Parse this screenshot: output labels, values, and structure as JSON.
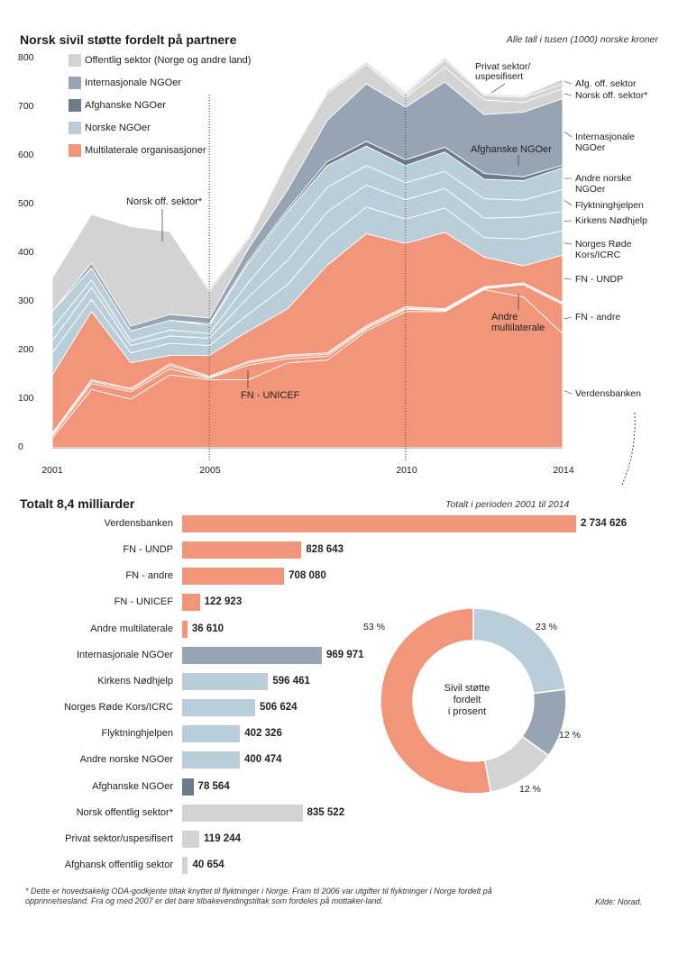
{
  "header": {
    "title": "Norsk sivil støtte fordelt på partnere",
    "unit_note": "Alle tall i tusen (1000) norske kroner"
  },
  "colors": {
    "public": "#d3d3d3",
    "intl": "#96a4b3",
    "afgh": "#6e7b88",
    "norsk": "#b9ced9",
    "multi": "#f1967a",
    "line": "#ffffff"
  },
  "legend": [
    {
      "label": "Offentlig sektor (Norge og andre land)",
      "color": "#d3d3d3"
    },
    {
      "label": "Internasjonale NGOer",
      "color": "#96a4b3"
    },
    {
      "label": "Afghanske NGOer",
      "color": "#6e7b88"
    },
    {
      "label": "Norske NGOer",
      "color": "#b9ced9"
    },
    {
      "label": "Multilaterale organisasjoner",
      "color": "#f1967a"
    }
  ],
  "chart_data": [
    {
      "type": "area",
      "title": "Norsk sivil støtte fordelt på partnere",
      "ylabel": "Alle tall i tusen (1000) norske kroner",
      "ylim": [
        0,
        800
      ],
      "yticks": [
        "800",
        "700",
        "600",
        "500",
        "400",
        "300",
        "200",
        "100",
        "0"
      ],
      "xticks": [
        "2001",
        "2005",
        "2010",
        "2014"
      ],
      "x": [
        2001,
        2002,
        2003,
        2004,
        2005,
        2006,
        2007,
        2008,
        2009,
        2010,
        2011,
        2012,
        2013,
        2014
      ],
      "stack_order": [
        "Verdensbanken",
        "FN - andre",
        "FN - UNICEF",
        "Andre multilaterale",
        "FN - UNDP",
        "Norges Røde Kors/ICRC",
        "Kirkens Nødhjelp",
        "Flyktninghjelpen",
        "Andre norske NGOer",
        "Afghanske NGOer",
        "Internasjonale NGOer",
        "Norsk off. sektor*",
        "Privat sektor/uspesifisert",
        "Afg. off. sektor"
      ],
      "series": [
        {
          "name": "Verdensbanken",
          "group": "multi",
          "values": [
            20,
            120,
            100,
            150,
            140,
            140,
            175,
            180,
            240,
            280,
            280,
            325,
            310,
            235
          ]
        },
        {
          "name": "FN - andre",
          "group": "multi",
          "values": [
            5,
            12,
            15,
            12,
            3,
            30,
            8,
            8,
            5,
            5,
            2,
            2,
            25,
            60
          ]
        },
        {
          "name": "FN - UNICEF",
          "group": "multi",
          "values": [
            3,
            5,
            4,
            7,
            2,
            5,
            5,
            4,
            3,
            2,
            2,
            2,
            2,
            2
          ]
        },
        {
          "name": "Andre multilaterale",
          "group": "multi",
          "values": [
            2,
            3,
            3,
            4,
            2,
            3,
            3,
            3,
            3,
            3,
            2,
            2,
            2,
            2
          ]
        },
        {
          "name": "FN - UNDP",
          "group": "multi",
          "values": [
            120,
            140,
            53,
            17,
            43,
            62,
            95,
            180,
            189,
            130,
            157,
            61,
            35,
            97
          ]
        },
        {
          "name": "Norges Røde Kors/ICRC",
          "group": "norsk",
          "values": [
            45,
            25,
            20,
            25,
            20,
            35,
            50,
            55,
            55,
            50,
            50,
            40,
            55,
            50
          ]
        },
        {
          "name": "Kirkens Nødhjelp",
          "group": "norsk",
          "values": [
            25,
            25,
            15,
            15,
            15,
            35,
            50,
            55,
            45,
            40,
            40,
            40,
            45,
            40
          ]
        },
        {
          "name": "Flyktninghjelpen",
          "group": "norsk",
          "values": [
            25,
            15,
            10,
            12,
            10,
            30,
            50,
            50,
            40,
            35,
            35,
            40,
            35,
            45
          ]
        },
        {
          "name": "Andre norske NGOer",
          "group": "norsk",
          "values": [
            35,
            25,
            20,
            20,
            17,
            40,
            50,
            45,
            40,
            35,
            40,
            40,
            40,
            45
          ]
        },
        {
          "name": "Afghanske NGOer",
          "group": "afgh",
          "values": [
            0,
            0,
            0,
            0,
            3,
            5,
            5,
            8,
            10,
            12,
            10,
            12,
            8,
            5
          ]
        },
        {
          "name": "Internasjonale NGOer",
          "group": "intl",
          "values": [
            0,
            10,
            10,
            12,
            12,
            25,
            40,
            85,
            118,
            108,
            134,
            121,
            133,
            137
          ]
        },
        {
          "name": "Norsk off. sektor*",
          "group": "public",
          "values": [
            70,
            100,
            205,
            170,
            55,
            20,
            60,
            55,
            40,
            20,
            30,
            30,
            20,
            20
          ]
        },
        {
          "name": "Privat sektor/uspesifisert",
          "group": "public",
          "values": [
            0,
            0,
            0,
            2,
            5,
            5,
            5,
            5,
            5,
            5,
            15,
            10,
            10,
            10
          ]
        },
        {
          "name": "Afg. off. sektor",
          "group": "public",
          "values": [
            0,
            0,
            0,
            0,
            0,
            0,
            0,
            2,
            2,
            5,
            5,
            3,
            3,
            10
          ]
        }
      ],
      "right_labels": [
        {
          "text": "Afg. off. sektor",
          "series": "Afg. off. sektor"
        },
        {
          "text": "Norsk off. sektor*",
          "series": "Norsk off. sektor*"
        },
        {
          "text": "Internasjonale NGOer",
          "series": "Internasjonale NGOer"
        },
        {
          "text": "Andre norske NGOer",
          "series": "Andre norske NGOer"
        },
        {
          "text": "Flyktninghjelpen",
          "series": "Flyktninghjelpen"
        },
        {
          "text": "Kirkens Nødhjelp",
          "series": "Kirkens Nødhjelp"
        },
        {
          "text": "Norges Røde Kors/ICRC",
          "series": "Norges Røde Kors/ICRC"
        },
        {
          "text": "FN - UNDP",
          "series": "FN - UNDP"
        },
        {
          "text": "FN - andre",
          "series": "FN - andre"
        },
        {
          "text": "Verdensbanken",
          "series": "Verdensbanken"
        }
      ],
      "annotations": [
        "Norsk off. sektor*",
        "Privat sektor/ uspesifisert",
        "Afghanske NGOer",
        "Andre multilaterale",
        "FN - UNICEF"
      ]
    },
    {
      "type": "bar",
      "title": "Totalt 8,4 milliarder",
      "subtitle": "Totalt i perioden 2001 til 2014",
      "categories": [
        "Verdensbanken",
        "FN - UNDP",
        "FN - andre",
        "FN - UNICEF",
        "Andre multilaterale",
        "Internasjonale  NGOer",
        "Kirkens Nødhjelp",
        "Norges Røde Kors/ICRC",
        "Flyktninghjelpen",
        "Andre norske NGOer",
        "Afghanske NGOer",
        "Norsk offentlig sektor*",
        "Privat sektor/uspesifisert",
        "Afghansk offentlig sektor"
      ],
      "values": [
        2734626,
        828643,
        708080,
        122923,
        36610,
        969971,
        596461,
        506624,
        402326,
        400474,
        78564,
        835522,
        119244,
        40654
      ],
      "value_labels": [
        "2 734 626",
        "828 643",
        "708 080",
        "122 923",
        "36 610",
        "969 971",
        "596 461",
        "506 624",
        "402 326",
        "400 474",
        "78 564",
        "835 522",
        "119 244",
        "40 654"
      ],
      "groups": [
        "multi",
        "multi",
        "multi",
        "multi",
        "multi",
        "intl",
        "norsk",
        "norsk",
        "norsk",
        "norsk",
        "afgh",
        "public",
        "public",
        "public"
      ]
    },
    {
      "type": "pie",
      "title": "Sivil støtte fordelt i prosent",
      "center_lines": [
        "Sivil støtte",
        "fordelt",
        "i prosent"
      ],
      "slices": [
        {
          "label": "Norske NGOer",
          "value": 23,
          "text": "23 %",
          "group": "norsk"
        },
        {
          "label": "Internasjonale NGOer",
          "value": 12,
          "text": "12 %",
          "group": "intl"
        },
        {
          "label": "Offentlig sektor",
          "value": 12,
          "text": "12 %",
          "group": "public"
        },
        {
          "label": "Multilaterale organisasjoner",
          "value": 53,
          "text": "53 %",
          "group": "multi"
        }
      ]
    }
  ],
  "footnote": {
    "line1": "* Dette er hovedsakelig ODA-godkjente tiltak knyttet til flyktninger i Norge. Fram til 2006 var utgifter til flyktninger i Norge fordelt på",
    "line2": "opprinnelsesland. Fra og med 2007 er det bare tilbakevendingstiltak som fordeles på mottaker-land.",
    "source": "Kilde: Norad."
  }
}
